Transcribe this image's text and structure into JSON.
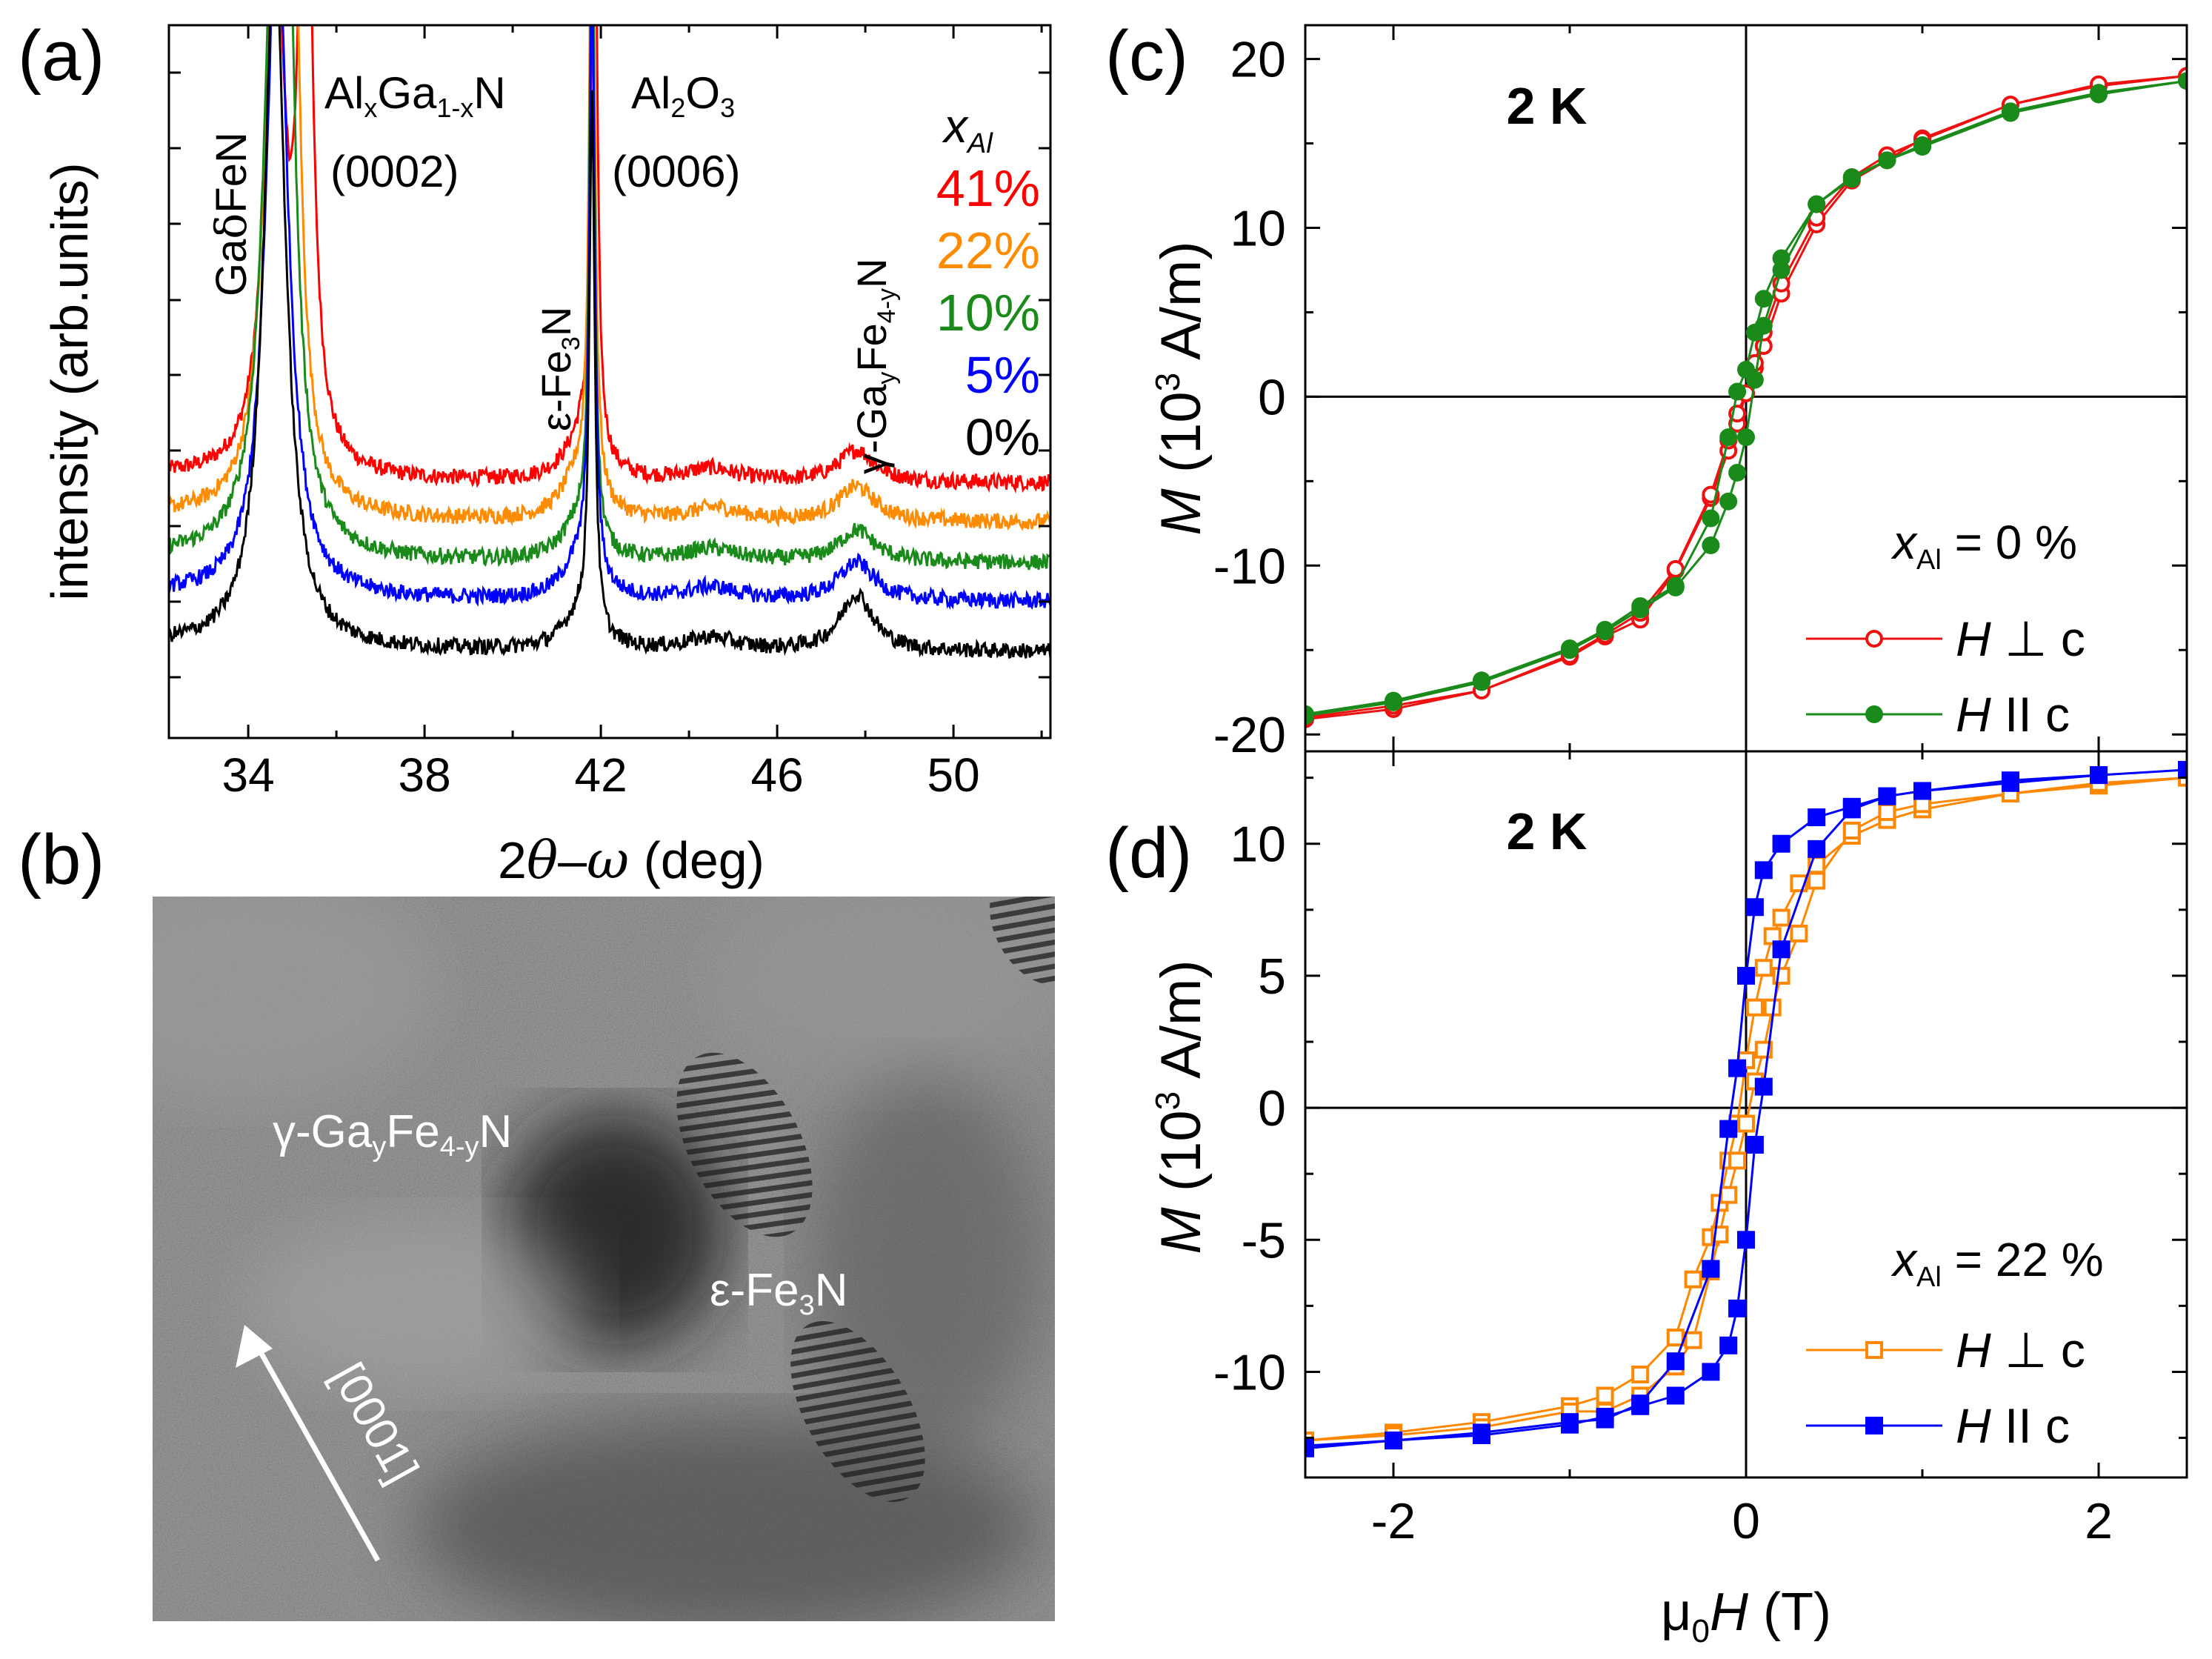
{
  "panels": {
    "a": {
      "label": "(a)"
    },
    "b": {
      "label": "(b)"
    },
    "c": {
      "label": "(c)"
    },
    "d": {
      "label": "(d)"
    }
  },
  "colors": {
    "x41": "#ff0000",
    "x22": "#ff8c00",
    "x10": "#1a8a1a",
    "x5": "#0000ff",
    "x0": "#000000",
    "perp_c": "#ee1111",
    "par_c": "#1a8a1a",
    "perp_d": "#ff8800",
    "par_d": "#0000ff"
  },
  "xrd": {
    "annotations": {
      "gadfen_a": "Ga",
      "gadfen_b": "δ",
      "gadfen_c": "FeN",
      "algan_al": "Al",
      "algan_x": "x",
      "algan_ga": "Ga",
      "algan_sub": "1-x",
      "algan_n": "N",
      "algan_hkl": "(0002)",
      "al2o3_al": "Al",
      "al2o3_2": "2",
      "al2o3_o": "O",
      "al2o3_3": "3",
      "al2o3_hkl": "(0006)",
      "efe3n_e": "ε-Fe",
      "efe3n_3": "3",
      "efe3n_n": "N",
      "gamma_g": "γ-Ga",
      "gamma_y": "y",
      "gamma_fe": "Fe",
      "gamma_sub": "4-y",
      "gamma_n": "N"
    },
    "legend": {
      "title_x": "x",
      "title_sub": "Al",
      "items": [
        "41%",
        "22%",
        "10%",
        "5%",
        "0%"
      ]
    }
  },
  "tem": {
    "labels": {
      "gamma_g": "γ-Ga",
      "gamma_y": "y",
      "gamma_fe": "Fe",
      "gamma_sub": "4-y",
      "gamma_n": "N",
      "efe_e": "ε-Fe",
      "efe_3": "3",
      "efe_n": "N",
      "direction": "[0001]"
    }
  },
  "mh": {
    "temp_c": "2 K",
    "temp_d": "2 K",
    "legend_c": {
      "x": "x",
      "sub": "Al",
      "value": " = 0 %",
      "perp_h": "H",
      "perp_rest": " ⊥ c",
      "par_h": "H",
      "par_rest": " II c"
    },
    "legend_d": {
      "x": "x",
      "sub": "Al",
      "value": " = 22 %",
      "perp_h": "H",
      "perp_rest": " ⊥ c",
      "par_h": "H",
      "par_rest": " II c"
    },
    "ylabel_c": {
      "m": "M",
      "p1": " (10",
      "sup": "3",
      "p2": " A/m)"
    },
    "ylabel_d": {
      "m": "M",
      "p1": " (10",
      "sup": "3",
      "p2": " A/m)"
    },
    "xlabel": {
      "mu": "μ",
      "sub": "0",
      "h": "H",
      "unit": " (T)"
    }
  },
  "chart_data": [
    {
      "panel": "a",
      "type": "line",
      "xlabel": "2θ–ω (deg)",
      "ylabel": "intensity (arb.units)",
      "xlim": [
        32.2,
        52.2
      ],
      "x_ticks": [
        34,
        38,
        42,
        46,
        50
      ],
      "y_ticks_labeled": false,
      "series": [
        {
          "name": "41%",
          "color": "#ff0000",
          "offset": 4,
          "peaks": [
            [
              34.6,
              0.84,
              0.26
            ],
            [
              35.3,
              1.12,
              0.17
            ],
            [
              41.85,
              1.15,
              0.07
            ],
            [
              41.6,
              0.07,
              0.45
            ],
            [
              47.8,
              0.05,
              0.5
            ],
            [
              44.5,
              0.02,
              0.7
            ]
          ]
        },
        {
          "name": "22%",
          "color": "#ff8c00",
          "offset": 3,
          "peaks": [
            [
              34.6,
              0.86,
              0.28
            ],
            [
              35.0,
              0.95,
              0.18
            ],
            [
              41.8,
              1.1,
              0.07
            ],
            [
              41.5,
              0.07,
              0.45
            ],
            [
              47.8,
              0.055,
              0.5
            ],
            [
              44.6,
              0.02,
              0.7
            ]
          ]
        },
        {
          "name": "10%",
          "color": "#1a8a1a",
          "offset": 2,
          "peaks": [
            [
              34.6,
              0.88,
              0.3
            ],
            [
              34.85,
              0.9,
              0.2
            ],
            [
              41.8,
              1.15,
              0.06
            ],
            [
              41.5,
              0.06,
              0.45
            ],
            [
              47.8,
              0.05,
              0.5
            ],
            [
              44.5,
              0.02,
              0.7
            ]
          ]
        },
        {
          "name": "5%",
          "color": "#0000ff",
          "offset": 1,
          "peaks": [
            [
              34.65,
              1.08,
              0.3
            ],
            [
              41.8,
              0.95,
              0.07
            ],
            [
              41.5,
              0.06,
              0.45
            ],
            [
              47.8,
              0.06,
              0.5
            ],
            [
              44.5,
              0.02,
              0.7
            ]
          ]
        },
        {
          "name": "0%",
          "color": "#000000",
          "offset": 0,
          "peaks": [
            [
              34.6,
              1.1,
              0.3
            ],
            [
              41.8,
              0.85,
              0.07
            ],
            [
              41.5,
              0.05,
              0.45
            ],
            [
              47.8,
              0.09,
              0.45
            ],
            [
              44.5,
              0.02,
              0.7
            ]
          ]
        }
      ]
    },
    {
      "panel": "c",
      "type": "line",
      "xlim": [
        -2.5,
        2.5
      ],
      "ylim": [
        -21,
        22
      ],
      "y_ticks": [
        -20,
        -10,
        0,
        10,
        20
      ],
      "series": [
        {
          "name": "H ⊥ c",
          "marker": "open-circle",
          "color": "#ee1111",
          "x": [
            -2.5,
            -2.0,
            -1.5,
            -1.0,
            -0.8,
            -0.6,
            -0.4,
            -0.2,
            -0.1,
            -0.05,
            0,
            0.05,
            0.1,
            0.2,
            0.4,
            0.6,
            0.8,
            1.0,
            1.5,
            2.0,
            2.5,
            2.0,
            1.5,
            1.0,
            0.8,
            0.6,
            0.4,
            0.2,
            0.1,
            0.05,
            0,
            -0.05,
            -0.1,
            -0.2,
            -0.4,
            -0.6,
            -0.8,
            -1.0,
            -1.5,
            -2.0,
            -2.5
          ],
          "y": [
            -19.1,
            -18.5,
            -17.4,
            -15.4,
            -14.2,
            -13.2,
            -10.3,
            -6.0,
            -3.2,
            -1.6,
            0.2,
            1.7,
            3.0,
            6.1,
            10.2,
            12.8,
            14.0,
            15.3,
            17.3,
            18.4,
            19.0,
            18.5,
            17.3,
            15.2,
            14.3,
            13.0,
            10.6,
            6.7,
            3.8,
            2.0,
            0.2,
            -1.0,
            -2.6,
            -5.8,
            -10.2,
            -12.8,
            -14.1,
            -15.3,
            -17.4,
            -18.3,
            -19.0
          ]
        },
        {
          "name": "H II c",
          "marker": "filled-circle",
          "color": "#1a8a1a",
          "x": [
            -2.5,
            -2.0,
            -1.5,
            -1.0,
            -0.8,
            -0.6,
            -0.4,
            -0.2,
            -0.1,
            -0.05,
            0,
            0.05,
            0.1,
            0.2,
            0.4,
            0.6,
            0.8,
            1.0,
            1.5,
            2.0,
            2.5,
            2.0,
            1.5,
            1.0,
            0.8,
            0.6,
            0.4,
            0.2,
            0.1,
            0.05,
            0,
            -0.05,
            -0.1,
            -0.2,
            -0.4,
            -0.6,
            -0.8,
            -1.0,
            -1.5,
            -2.0,
            -2.5
          ],
          "y": [
            -18.9,
            -18.1,
            -16.9,
            -15.0,
            -13.9,
            -12.6,
            -11.3,
            -8.8,
            -6.2,
            -4.5,
            -2.4,
            1.0,
            4.2,
            7.5,
            11.4,
            13.0,
            14.0,
            14.9,
            16.9,
            18.0,
            18.7,
            17.9,
            16.8,
            14.8,
            14.0,
            12.9,
            11.4,
            8.2,
            5.8,
            3.8,
            1.6,
            0.3,
            -2.4,
            -7.2,
            -11.2,
            -12.4,
            -13.8,
            -14.9,
            -16.8,
            -18.0,
            -18.8
          ]
        }
      ]
    },
    {
      "panel": "d",
      "type": "line",
      "xlabel": "μ0H (T)",
      "xlim": [
        -2.5,
        2.5
      ],
      "x_ticks": [
        -2,
        0,
        2
      ],
      "ylim": [
        -14,
        13.5
      ],
      "y_ticks": [
        -10,
        -5,
        0,
        5,
        10
      ],
      "series": [
        {
          "name": "H ⊥ c",
          "marker": "open-square",
          "color": "#ff8800",
          "x": [
            -2.5,
            -2.0,
            -1.5,
            -1.0,
            -0.8,
            -0.6,
            -0.4,
            -0.3,
            -0.2,
            -0.15,
            -0.1,
            -0.05,
            0,
            0.05,
            0.1,
            0.15,
            0.2,
            0.3,
            0.4,
            0.6,
            0.8,
            1.0,
            1.5,
            2.0,
            2.5,
            2.0,
            1.5,
            1.0,
            0.8,
            0.6,
            0.4,
            0.3,
            0.2,
            0.15,
            0.1,
            0.05,
            0,
            -0.05,
            -0.1,
            -0.15,
            -0.2,
            -0.3,
            -0.4,
            -0.6,
            -0.8,
            -1.0,
            -1.5,
            -2.0,
            -2.5
          ],
          "y": [
            -12.6,
            -12.3,
            -11.9,
            -11.3,
            -10.9,
            -10.1,
            -8.7,
            -6.5,
            -4.9,
            -3.6,
            -2.0,
            -0.6,
            1.8,
            3.8,
            5.3,
            6.5,
            7.2,
            8.5,
            9.2,
            10.3,
            10.9,
            11.3,
            11.9,
            12.2,
            12.5,
            12.3,
            11.9,
            11.5,
            11.2,
            10.5,
            8.6,
            6.6,
            5.0,
            3.8,
            2.2,
            1.0,
            -0.6,
            -2.0,
            -3.3,
            -4.8,
            -6.2,
            -8.8,
            -9.8,
            -10.9,
            -11.5,
            -11.5,
            -12.1,
            -12.4,
            -12.6
          ]
        },
        {
          "name": "H II c",
          "marker": "filled-square",
          "color": "#0000ff",
          "x": [
            -2.5,
            -2.0,
            -1.5,
            -1.0,
            -0.8,
            -0.6,
            -0.4,
            -0.2,
            -0.1,
            -0.05,
            0,
            0.05,
            0.1,
            0.2,
            0.4,
            0.6,
            0.8,
            1.0,
            1.5,
            2.0,
            2.5,
            2.0,
            1.5,
            1.0,
            0.8,
            0.6,
            0.4,
            0.2,
            0.1,
            0.05,
            0,
            -0.05,
            -0.1,
            -0.2,
            -0.4,
            -0.6,
            -0.8,
            -1.0,
            -1.5,
            -2.0,
            -2.5
          ],
          "y": [
            -12.9,
            -12.6,
            -12.4,
            -12.0,
            -11.7,
            -11.3,
            -10.9,
            -10.0,
            -9.0,
            -7.6,
            -5.0,
            -1.4,
            0.8,
            6.0,
            9.8,
            11.3,
            11.8,
            12.0,
            12.4,
            12.6,
            12.8,
            12.6,
            12.3,
            12.0,
            11.8,
            11.4,
            11.0,
            10.0,
            9.0,
            7.6,
            5.0,
            1.5,
            -0.8,
            -6.1,
            -9.6,
            -11.2,
            -11.8,
            -11.9,
            -12.3,
            -12.6,
            -12.8
          ]
        }
      ]
    }
  ]
}
